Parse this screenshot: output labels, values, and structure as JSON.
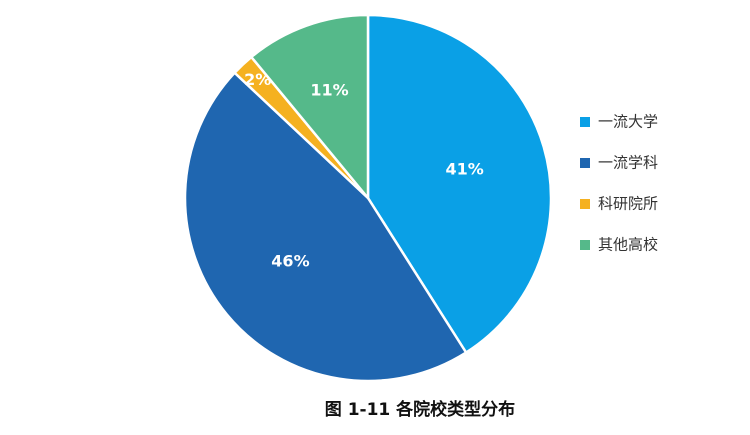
{
  "chart_data": {
    "type": "pie",
    "title": "图 1-11  各院校类型分布",
    "categories": [
      "一流大学",
      "一流学科",
      "科研院所",
      "其他高校"
    ],
    "values": [
      41,
      46,
      2,
      11
    ],
    "value_labels": [
      "41%",
      "46%",
      "2%",
      "11%"
    ],
    "colors": [
      "#0aa0e6",
      "#1f66b0",
      "#f5b120",
      "#55b98a"
    ],
    "legend": "right"
  }
}
